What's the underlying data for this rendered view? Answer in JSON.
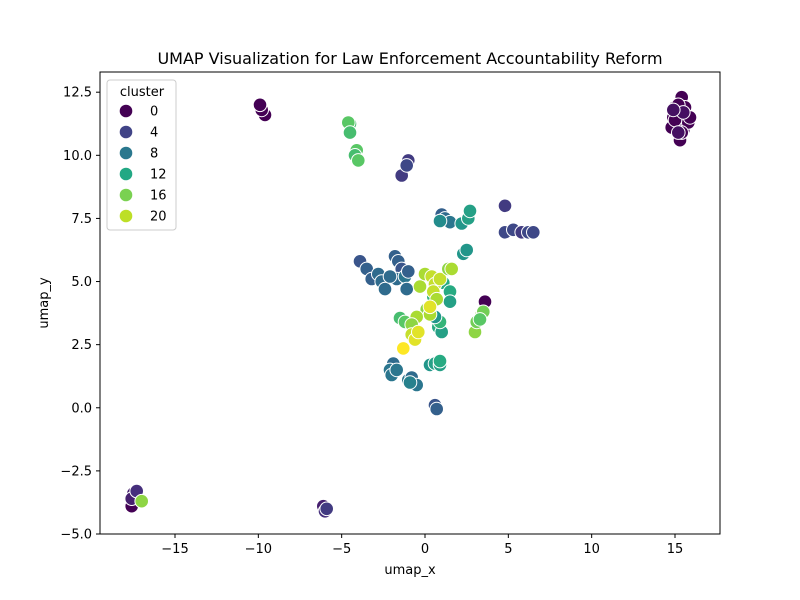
{
  "chart_data": {
    "type": "scatter",
    "title": "UMAP Visualization for Law Enforcement Accountability Reform",
    "xlabel": "umap_x",
    "ylabel": "umap_y",
    "xlim": [
      -19.5,
      17.7
    ],
    "ylim": [
      -5.0,
      13.3
    ],
    "xticks": [
      -15,
      -10,
      -5,
      0,
      5,
      10,
      15
    ],
    "yticks": [
      -5.0,
      -2.5,
      0.0,
      2.5,
      5.0,
      7.5,
      10.0,
      12.5
    ],
    "xtick_labels": [
      "−15",
      "−10",
      "−5",
      "0",
      "5",
      "10",
      "15"
    ],
    "ytick_labels": [
      "−5.0",
      "−2.5",
      "0.0",
      "2.5",
      "5.0",
      "7.5",
      "10.0",
      "12.5"
    ],
    "grid": false,
    "legend": {
      "title": "cluster",
      "placement": "top-left",
      "entries": [
        {
          "label": "0",
          "color": "#440154"
        },
        {
          "label": "4",
          "color": "#414487"
        },
        {
          "label": "8",
          "color": "#2a788e"
        },
        {
          "label": "12",
          "color": "#22a884"
        },
        {
          "label": "16",
          "color": "#7ad151"
        },
        {
          "label": "20",
          "color": "#bddf26"
        }
      ]
    },
    "colormap": "viridis",
    "cluster_range": [
      0,
      23
    ],
    "points": [
      {
        "x": 15.0,
        "y": 11.9,
        "cluster": 0
      },
      {
        "x": 15.4,
        "y": 12.3,
        "cluster": 0
      },
      {
        "x": 15.7,
        "y": 11.6,
        "cluster": 0
      },
      {
        "x": 15.2,
        "y": 11.2,
        "cluster": 0
      },
      {
        "x": 14.9,
        "y": 11.5,
        "cluster": 0
      },
      {
        "x": 15.5,
        "y": 11.0,
        "cluster": 0
      },
      {
        "x": 15.1,
        "y": 11.7,
        "cluster": 0
      },
      {
        "x": 15.8,
        "y": 11.3,
        "cluster": 0
      },
      {
        "x": 15.3,
        "y": 10.6,
        "cluster": 0
      },
      {
        "x": 14.8,
        "y": 11.1,
        "cluster": 0
      },
      {
        "x": 15.6,
        "y": 11.9,
        "cluster": 0
      },
      {
        "x": 15.0,
        "y": 11.4,
        "cluster": 0
      },
      {
        "x": 15.4,
        "y": 10.9,
        "cluster": 0
      },
      {
        "x": 15.9,
        "y": 11.5,
        "cluster": 0
      },
      {
        "x": 15.2,
        "y": 12.0,
        "cluster": 0
      },
      {
        "x": 15.5,
        "y": 11.7,
        "cluster": 1
      },
      {
        "x": 14.9,
        "y": 11.8,
        "cluster": 1
      },
      {
        "x": 15.2,
        "y": 10.9,
        "cluster": 1
      },
      {
        "x": -9.6,
        "y": 11.6,
        "cluster": 0
      },
      {
        "x": -9.8,
        "y": 11.8,
        "cluster": 0
      },
      {
        "x": -9.9,
        "y": 12.0,
        "cluster": 0
      },
      {
        "x": 3.6,
        "y": 4.2,
        "cluster": 0
      },
      {
        "x": -17.6,
        "y": -3.9,
        "cluster": 0
      },
      {
        "x": -17.4,
        "y": -3.5,
        "cluster": 1
      },
      {
        "x": -17.5,
        "y": -3.4,
        "cluster": 2
      },
      {
        "x": -17.6,
        "y": -3.6,
        "cluster": 2
      },
      {
        "x": -17.3,
        "y": -3.3,
        "cluster": 3
      },
      {
        "x": -17.0,
        "y": -3.7,
        "cluster": 19
      },
      {
        "x": -6.1,
        "y": -3.9,
        "cluster": 2
      },
      {
        "x": -6.0,
        "y": -4.1,
        "cluster": 3
      },
      {
        "x": -5.9,
        "y": -4.0,
        "cluster": 4
      },
      {
        "x": -1.0,
        "y": 9.8,
        "cluster": 4
      },
      {
        "x": -1.4,
        "y": 9.2,
        "cluster": 4
      },
      {
        "x": -1.1,
        "y": 9.6,
        "cluster": 5
      },
      {
        "x": 4.8,
        "y": 8.0,
        "cluster": 4
      },
      {
        "x": 4.8,
        "y": 6.95,
        "cluster": 5
      },
      {
        "x": 5.3,
        "y": 7.05,
        "cluster": 5
      },
      {
        "x": 5.8,
        "y": 6.95,
        "cluster": 4
      },
      {
        "x": 6.2,
        "y": 6.95,
        "cluster": 5
      },
      {
        "x": 6.5,
        "y": 6.95,
        "cluster": 5
      },
      {
        "x": 1.0,
        "y": 7.65,
        "cluster": 7
      },
      {
        "x": 1.2,
        "y": 7.5,
        "cluster": 8
      },
      {
        "x": 1.5,
        "y": 7.35,
        "cluster": 9
      },
      {
        "x": 0.9,
        "y": 7.4,
        "cluster": 11
      },
      {
        "x": 2.2,
        "y": 7.3,
        "cluster": 12
      },
      {
        "x": 2.6,
        "y": 7.5,
        "cluster": 13
      },
      {
        "x": 2.7,
        "y": 7.8,
        "cluster": 13
      },
      {
        "x": 2.3,
        "y": 6.1,
        "cluster": 12
      },
      {
        "x": 2.5,
        "y": 6.25,
        "cluster": 12
      },
      {
        "x": -3.9,
        "y": 5.8,
        "cluster": 6
      },
      {
        "x": -3.5,
        "y": 5.5,
        "cluster": 7
      },
      {
        "x": -3.2,
        "y": 5.1,
        "cluster": 7
      },
      {
        "x": -2.8,
        "y": 5.3,
        "cluster": 8
      },
      {
        "x": -2.6,
        "y": 5.0,
        "cluster": 8
      },
      {
        "x": -2.4,
        "y": 4.7,
        "cluster": 8
      },
      {
        "x": -1.8,
        "y": 6.0,
        "cluster": 7
      },
      {
        "x": -1.6,
        "y": 5.8,
        "cluster": 7
      },
      {
        "x": -1.4,
        "y": 5.5,
        "cluster": 6
      },
      {
        "x": -1.7,
        "y": 5.1,
        "cluster": 8
      },
      {
        "x": -1.2,
        "y": 5.2,
        "cluster": 9
      },
      {
        "x": -1.0,
        "y": 5.4,
        "cluster": 7
      },
      {
        "x": -1.1,
        "y": 4.7,
        "cluster": 8
      },
      {
        "x": -2.1,
        "y": 5.2,
        "cluster": 8
      },
      {
        "x": -1.9,
        "y": 1.75,
        "cluster": 8
      },
      {
        "x": -2.1,
        "y": 1.5,
        "cluster": 9
      },
      {
        "x": -2.0,
        "y": 1.3,
        "cluster": 9
      },
      {
        "x": -1.7,
        "y": 1.5,
        "cluster": 9
      },
      {
        "x": -1.0,
        "y": 1.1,
        "cluster": 9
      },
      {
        "x": -0.8,
        "y": 1.2,
        "cluster": 8
      },
      {
        "x": -0.5,
        "y": 0.9,
        "cluster": 9
      },
      {
        "x": -0.9,
        "y": 1.0,
        "cluster": 10
      },
      {
        "x": 0.6,
        "y": 0.1,
        "cluster": 6
      },
      {
        "x": 0.7,
        "y": -0.05,
        "cluster": 7
      },
      {
        "x": 0.3,
        "y": 1.7,
        "cluster": 12
      },
      {
        "x": 0.6,
        "y": 1.75,
        "cluster": 13
      },
      {
        "x": 0.9,
        "y": 1.7,
        "cluster": 13
      },
      {
        "x": 0.9,
        "y": 1.85,
        "cluster": 14
      },
      {
        "x": 0.8,
        "y": 3.2,
        "cluster": 14
      },
      {
        "x": 1.0,
        "y": 3.0,
        "cluster": 13
      },
      {
        "x": 0.9,
        "y": 3.4,
        "cluster": 15
      },
      {
        "x": 0.6,
        "y": 3.6,
        "cluster": 12
      },
      {
        "x": 1.1,
        "y": 4.95,
        "cluster": 14
      },
      {
        "x": 1.5,
        "y": 4.6,
        "cluster": 14
      },
      {
        "x": 1.5,
        "y": 4.2,
        "cluster": 13
      },
      {
        "x": 0.5,
        "y": 4.4,
        "cluster": 15
      },
      {
        "x": -1.5,
        "y": 3.55,
        "cluster": 16
      },
      {
        "x": -1.2,
        "y": 3.4,
        "cluster": 17
      },
      {
        "x": -4.5,
        "y": 11.25,
        "cluster": 16
      },
      {
        "x": -4.6,
        "y": 11.3,
        "cluster": 17
      },
      {
        "x": -4.5,
        "y": 10.9,
        "cluster": 16
      },
      {
        "x": -4.1,
        "y": 10.2,
        "cluster": 17
      },
      {
        "x": -4.2,
        "y": 10.0,
        "cluster": 16
      },
      {
        "x": -4.0,
        "y": 9.8,
        "cluster": 17
      },
      {
        "x": 0.1,
        "y": 3.9,
        "cluster": 19
      },
      {
        "x": 0.3,
        "y": 3.7,
        "cluster": 20
      },
      {
        "x": -0.5,
        "y": 3.6,
        "cluster": 20
      },
      {
        "x": -0.8,
        "y": 3.3,
        "cluster": 19
      },
      {
        "x": -0.3,
        "y": 4.8,
        "cluster": 20
      },
      {
        "x": 0.0,
        "y": 5.3,
        "cluster": 20
      },
      {
        "x": 0.4,
        "y": 5.2,
        "cluster": 21
      },
      {
        "x": 0.6,
        "y": 4.9,
        "cluster": 21
      },
      {
        "x": 0.5,
        "y": 4.6,
        "cluster": 21
      },
      {
        "x": 0.7,
        "y": 4.3,
        "cluster": 20
      },
      {
        "x": 0.3,
        "y": 4.0,
        "cluster": 22
      },
      {
        "x": 0.9,
        "y": 5.1,
        "cluster": 21
      },
      {
        "x": 1.4,
        "y": 5.5,
        "cluster": 19
      },
      {
        "x": 1.6,
        "y": 5.5,
        "cluster": 20
      },
      {
        "x": -0.8,
        "y": 2.9,
        "cluster": 21
      },
      {
        "x": -0.6,
        "y": 2.7,
        "cluster": 22
      },
      {
        "x": -1.3,
        "y": 2.35,
        "cluster": 23
      },
      {
        "x": -0.4,
        "y": 3.0,
        "cluster": 22
      },
      {
        "x": 3.0,
        "y": 3.0,
        "cluster": 19
      },
      {
        "x": 3.1,
        "y": 3.4,
        "cluster": 18
      },
      {
        "x": 3.4,
        "y": 3.7,
        "cluster": 19
      },
      {
        "x": 3.5,
        "y": 3.8,
        "cluster": 18
      },
      {
        "x": 3.3,
        "y": 3.5,
        "cluster": 17
      }
    ]
  }
}
